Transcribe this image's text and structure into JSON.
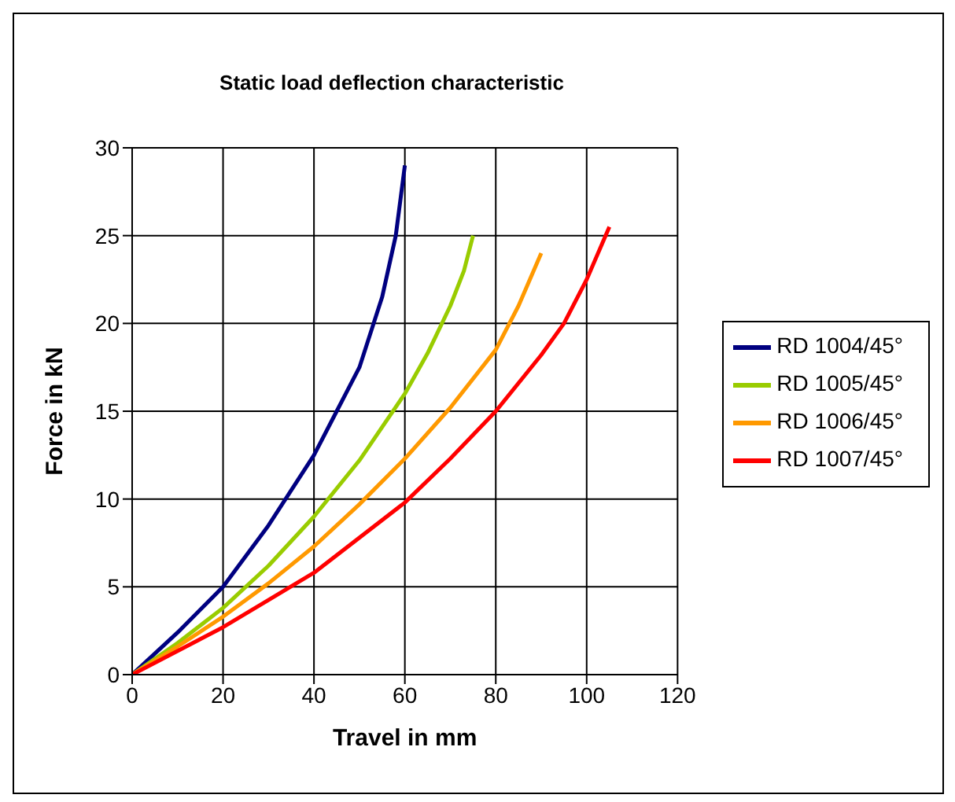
{
  "chart_data": {
    "type": "line",
    "title": "Static  load deflection characteristic",
    "xlabel": "Travel in mm",
    "ylabel": "Force in kN",
    "xlim": [
      0,
      120
    ],
    "ylim": [
      0,
      30
    ],
    "xticks": [
      0,
      20,
      40,
      60,
      80,
      100,
      120
    ],
    "yticks": [
      0,
      5,
      10,
      15,
      20,
      25,
      30
    ],
    "grid": true,
    "legend": "right",
    "marker": "none",
    "series": [
      {
        "name": "RD 1004/45°",
        "color": "#000080",
        "x": [
          0,
          10,
          20,
          30,
          40,
          45,
          50,
          55,
          58,
          60
        ],
        "values": [
          0,
          2.4,
          5,
          8.5,
          12.5,
          15,
          17.5,
          21.5,
          25,
          29
        ]
      },
      {
        "name": "RD 1005/45°",
        "color": "#99cc00",
        "x": [
          0,
          10,
          20,
          30,
          40,
          50,
          60,
          65,
          70,
          73,
          75
        ],
        "values": [
          0,
          1.8,
          3.8,
          6.2,
          9,
          12.2,
          16,
          18.3,
          21,
          23,
          25
        ]
      },
      {
        "name": "RD 1006/45°",
        "color": "#ff9900",
        "x": [
          0,
          10,
          20,
          30,
          40,
          50,
          60,
          70,
          80,
          85,
          90
        ],
        "values": [
          0,
          1.6,
          3.3,
          5.2,
          7.3,
          9.7,
          12.3,
          15.2,
          18.5,
          21,
          24
        ]
      },
      {
        "name": "RD 1007/45°",
        "color": "#ff0000",
        "x": [
          0,
          20,
          40,
          60,
          70,
          80,
          90,
          95,
          100,
          105
        ],
        "values": [
          0,
          2.7,
          5.8,
          9.8,
          12.3,
          15,
          18.2,
          20,
          22.5,
          25.5
        ]
      }
    ]
  }
}
